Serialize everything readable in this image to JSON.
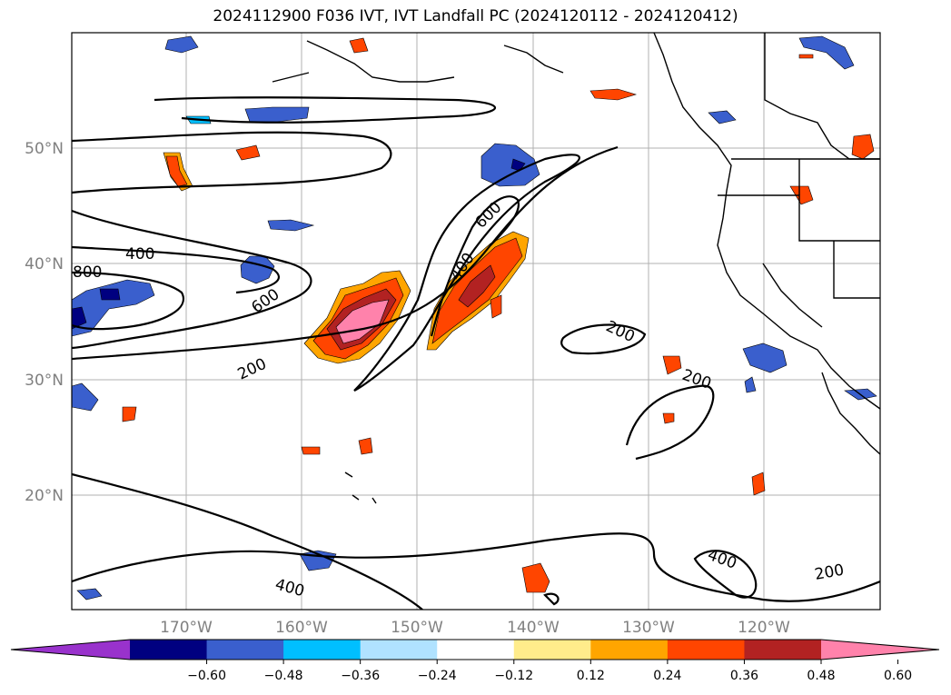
{
  "title": "2024112900 F036 IVT, IVT Landfall PC (2024120112 - 2024120412)",
  "lat_labels": [
    "50°N",
    "40°N",
    "30°N",
    "20°N"
  ],
  "lon_labels": [
    "170°W",
    "160°W",
    "150°W",
    "140°W",
    "130°W",
    "120°W"
  ],
  "contour_labels": [
    "400",
    "800",
    "600",
    "200",
    "400",
    "600",
    "200",
    "200",
    "400",
    "200",
    "400"
  ],
  "colorbar": {
    "ticks": [
      "−0.60",
      "−0.48",
      "−0.36",
      "−0.24",
      "−0.12",
      "0.12",
      "0.24",
      "0.36",
      "0.48",
      "0.60"
    ],
    "colors": [
      "#9932cc",
      "#000080",
      "#3a5fcd",
      "#00bfff",
      "#b0e2ff",
      "#ffffff",
      "#ffec8b",
      "#ffa500",
      "#ff4500",
      "#b22222",
      "#ff82ab"
    ]
  }
}
